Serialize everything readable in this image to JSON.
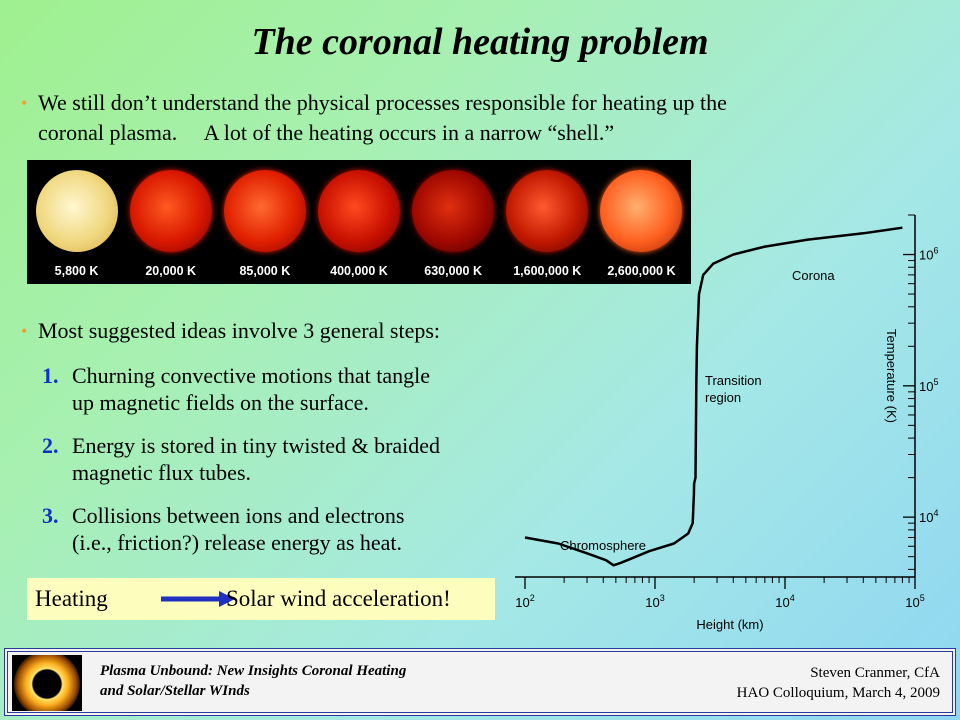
{
  "slide": {
    "title": "The coronal heating problem",
    "bullet1_line1": "We still don’t understand the physical processes responsible for heating up the",
    "bullet1_line2": "coronal plasma.     A lot of the heating occurs in a narrow “shell.”",
    "bullet2": "Most suggested ideas involve 3 general steps:",
    "bullet_color": "#f0a030"
  },
  "sun_images": [
    {
      "label": "5,800 K",
      "colors": [
        "#fff8d0",
        "#f0d880",
        "#d8a840"
      ]
    },
    {
      "label": "20,000 K",
      "colors": [
        "#ff5a20",
        "#d81800",
        "#7a0000"
      ]
    },
    {
      "label": "85,000 K",
      "colors": [
        "#ff6a30",
        "#e02000",
        "#800000"
      ]
    },
    {
      "label": "400,000 K",
      "colors": [
        "#ff4a20",
        "#c81000",
        "#6a0000"
      ]
    },
    {
      "label": "630,000 K",
      "colors": [
        "#e03010",
        "#a00800",
        "#400000"
      ]
    },
    {
      "label": "1,600,000 K",
      "colors": [
        "#ff5a30",
        "#c01800",
        "#500000"
      ]
    },
    {
      "label": "2,600,000 K",
      "colors": [
        "#ffb070",
        "#ff6020",
        "#a02000"
      ]
    }
  ],
  "steps": [
    {
      "num": "1.",
      "line1": "Churning convective motions that tangle",
      "line2": "up magnetic fields on the surface."
    },
    {
      "num": "2.",
      "line1": "Energy is stored in tiny twisted & braided",
      "line2": "magnetic flux tubes."
    },
    {
      "num": "3.",
      "line1": "Collisions between ions and electrons",
      "line2": "(i.e., friction?) release energy as heat."
    }
  ],
  "step_number_color": "#1030c8",
  "heating_box": {
    "left": "Heating",
    "right": "Solar wind acceleration!",
    "arrow_color": "#2030c0",
    "background": "#fdfdbe"
  },
  "chart_data": {
    "type": "line",
    "xlabel": "Height (km)",
    "ylabel": "Temperature (K)",
    "x_scale": "log",
    "y_scale": "log",
    "xlim": [
      100,
      100000
    ],
    "ylim": [
      3500,
      2000000
    ],
    "x_ticks": [
      "10^2",
      "10^3",
      "10^4",
      "10^5"
    ],
    "y_ticks": [
      "10^4",
      "10^5",
      "10^6"
    ],
    "annotations": [
      "Chromosphere",
      "Transition region",
      "Corona"
    ],
    "series": [
      {
        "points": [
          [
            100,
            7000
          ],
          [
            180,
            6300
          ],
          [
            300,
            5300
          ],
          [
            420,
            4700
          ],
          [
            480,
            4300
          ],
          [
            550,
            4500
          ],
          [
            900,
            5500
          ],
          [
            1400,
            6300
          ],
          [
            1800,
            7500
          ],
          [
            1950,
            9000
          ],
          [
            1990,
            15000
          ],
          [
            2000,
            18000
          ],
          [
            2050,
            20000
          ],
          [
            2080,
            100000
          ],
          [
            2100,
            200000
          ],
          [
            2180,
            500000
          ],
          [
            2350,
            700000
          ],
          [
            2800,
            850000
          ],
          [
            4000,
            1000000
          ],
          [
            7000,
            1150000
          ],
          [
            15000,
            1300000
          ],
          [
            40000,
            1450000
          ],
          [
            80000,
            1600000
          ]
        ]
      }
    ]
  },
  "footer": {
    "left_line1": "Plasma Unbound:  New Insights Coronal Heating",
    "left_line2": "and Solar/Stellar WInds",
    "right_line1": "Steven Cranmer,  CfA",
    "right_line2": "HAO Colloquium, March 4, 2009"
  }
}
